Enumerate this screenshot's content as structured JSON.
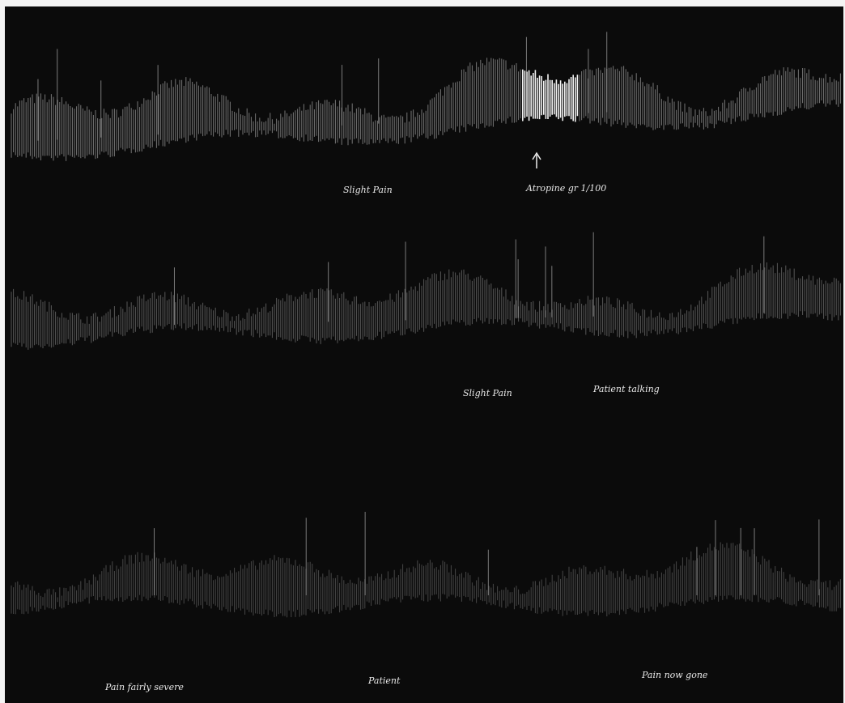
{
  "annotations": [
    {
      "text": "Slight Pain"
    },
    {
      "text": "Atropine gr 1/100"
    },
    {
      "text": "Slight Pain"
    },
    {
      "text": "Patient talking"
    },
    {
      "text": "Pain fairly severe"
    },
    {
      "text": "Patient"
    },
    {
      "text": "Pain now gone"
    }
  ]
}
